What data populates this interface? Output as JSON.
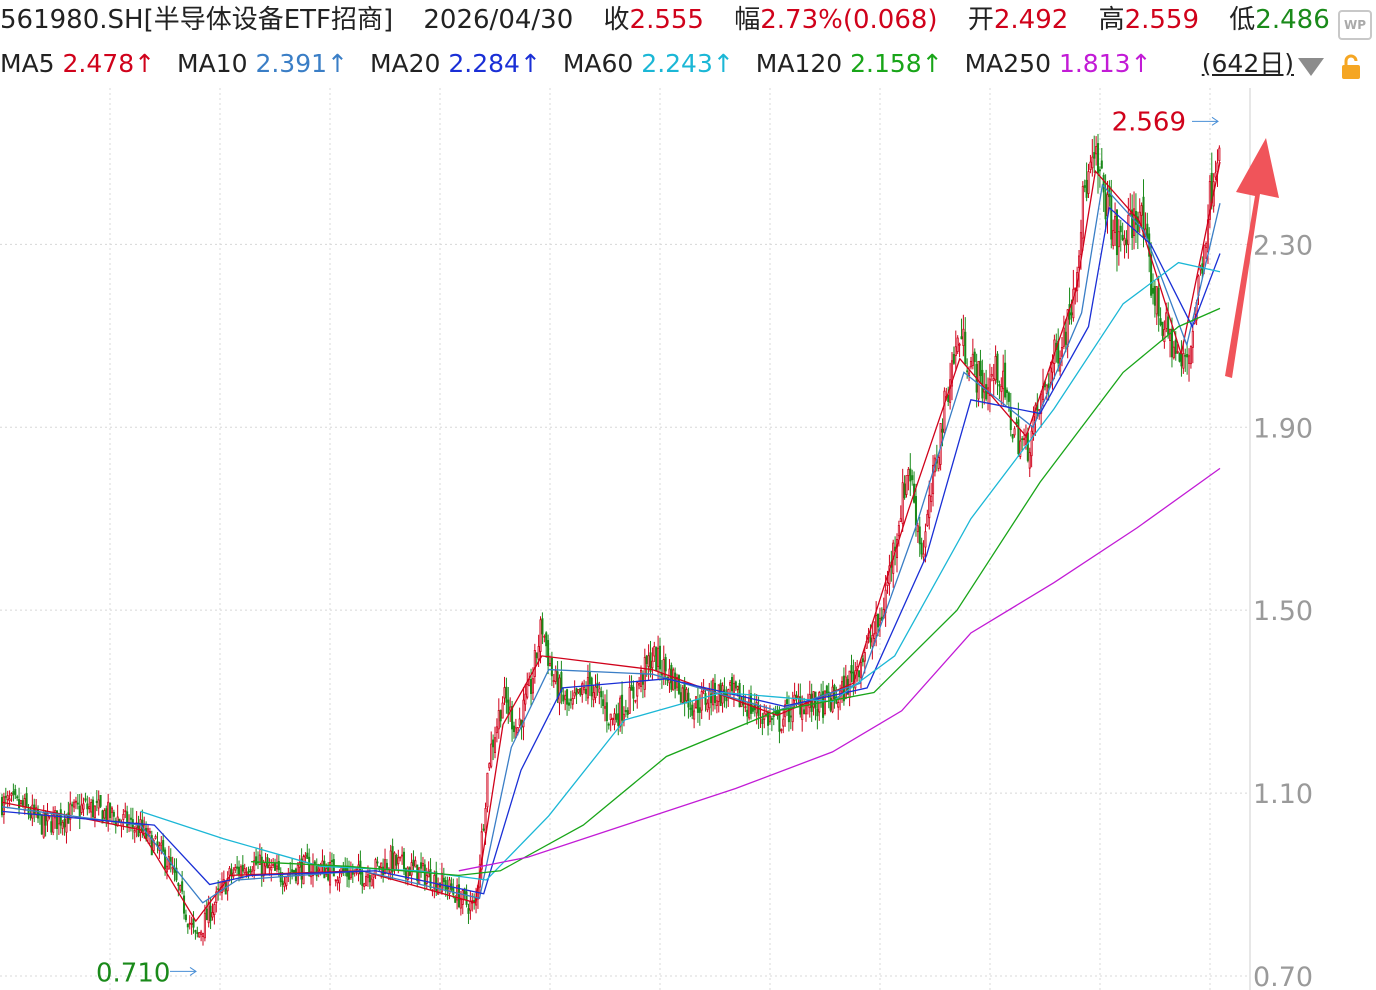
{
  "header": {
    "symbol": "561980.SH[半导体设备ETF招商]",
    "date": "2026/04/30",
    "close_label": "收",
    "close_value": "2.555",
    "change_label": "幅",
    "change_value": "2.73%(0.068)",
    "open_label": "开",
    "open_value": "2.492",
    "high_label": "高",
    "high_value": "2.559",
    "low_label": "低",
    "low_value": "2.486"
  },
  "ma": [
    {
      "label": "MA5",
      "value": "2.478↑",
      "color": "#d0021b"
    },
    {
      "label": "MA10",
      "value": "2.391↑",
      "color": "#3a7ec6"
    },
    {
      "label": "MA20",
      "value": "2.284↑",
      "color": "#1a2fd6"
    },
    {
      "label": "MA60",
      "value": "2.243↑",
      "color": "#1bb7d6"
    },
    {
      "label": "MA120",
      "value": "2.158↑",
      "color": "#19a519"
    },
    {
      "label": "MA250",
      "value": "1.813↑",
      "color": "#c21bd6"
    }
  ],
  "period": "(642日)",
  "badge": "WP",
  "colors": {
    "up": "#d0021b",
    "down": "#1a8a1a",
    "arrow": "#f0545a",
    "grid": "#d8d8d8"
  },
  "chart_data": {
    "type": "candlestick",
    "bars": 642,
    "y_ticks": [
      "2.30",
      "1.90",
      "1.50",
      "1.10",
      "0.70"
    ],
    "ylim": [
      0.7,
      2.62
    ],
    "max_label": "2.569",
    "min_label": "0.710",
    "close_path": [
      [
        0,
        1.08
      ],
      [
        15,
        1.07
      ],
      [
        30,
        1.03
      ],
      [
        45,
        1.05
      ],
      [
        60,
        1.07
      ],
      [
        80,
        1.05
      ],
      [
        100,
        1.02
      ],
      [
        120,
        0.95
      ],
      [
        140,
        0.78
      ],
      [
        150,
        0.84
      ],
      [
        165,
        0.92
      ],
      [
        180,
        0.95
      ],
      [
        200,
        0.92
      ],
      [
        220,
        0.94
      ],
      [
        240,
        0.93
      ],
      [
        260,
        0.92
      ],
      [
        280,
        0.95
      ],
      [
        300,
        0.93
      ],
      [
        320,
        0.9
      ],
      [
        335,
        0.86
      ],
      [
        342,
        0.85
      ],
      [
        345,
        0.95
      ],
      [
        352,
        1.18
      ],
      [
        362,
        1.31
      ],
      [
        372,
        1.24
      ],
      [
        382,
        1.33
      ],
      [
        390,
        1.47
      ],
      [
        398,
        1.35
      ],
      [
        410,
        1.28
      ],
      [
        425,
        1.34
      ],
      [
        440,
        1.26
      ],
      [
        455,
        1.31
      ],
      [
        470,
        1.4
      ],
      [
        485,
        1.35
      ],
      [
        500,
        1.29
      ],
      [
        515,
        1.32
      ],
      [
        530,
        1.31
      ],
      [
        545,
        1.28
      ],
      [
        560,
        1.25
      ],
      [
        575,
        1.3
      ],
      [
        590,
        1.29
      ],
      [
        605,
        1.31
      ],
      [
        615,
        1.36
      ],
      [
        625,
        1.42
      ],
      [
        635,
        1.48
      ],
      [
        645,
        1.65
      ],
      [
        655,
        1.82
      ],
      [
        665,
        1.62
      ],
      [
        675,
        1.83
      ],
      [
        685,
        2.02
      ],
      [
        692,
        2.1
      ],
      [
        700,
        2.04
      ],
      [
        710,
        1.98
      ],
      [
        720,
        2.03
      ],
      [
        730,
        1.9
      ],
      [
        740,
        1.85
      ],
      [
        750,
        1.95
      ],
      [
        760,
        2.05
      ],
      [
        770,
        2.13
      ],
      [
        776,
        2.25
      ],
      [
        782,
        2.42
      ],
      [
        790,
        2.48
      ],
      [
        798,
        2.39
      ],
      [
        806,
        2.3
      ],
      [
        814,
        2.33
      ],
      [
        822,
        2.38
      ],
      [
        830,
        2.22
      ],
      [
        838,
        2.13
      ],
      [
        846,
        2.08
      ],
      [
        852,
        2.03
      ],
      [
        858,
        2.07
      ],
      [
        864,
        2.2
      ],
      [
        870,
        2.34
      ],
      [
        876,
        2.48
      ],
      [
        880,
        2.555
      ]
    ],
    "ma_paths": {
      "MA5": [
        [
          0,
          1.08
        ],
        [
          100,
          1.02
        ],
        [
          140,
          0.82
        ],
        [
          165,
          0.92
        ],
        [
          260,
          0.93
        ],
        [
          342,
          0.86
        ],
        [
          362,
          1.25
        ],
        [
          390,
          1.4
        ],
        [
          470,
          1.37
        ],
        [
          560,
          1.27
        ],
        [
          615,
          1.34
        ],
        [
          655,
          1.72
        ],
        [
          692,
          2.05
        ],
        [
          740,
          1.88
        ],
        [
          776,
          2.2
        ],
        [
          790,
          2.46
        ],
        [
          822,
          2.35
        ],
        [
          852,
          2.06
        ],
        [
          880,
          2.48
        ]
      ],
      "MA10": [
        [
          0,
          1.07
        ],
        [
          100,
          1.03
        ],
        [
          145,
          0.86
        ],
        [
          170,
          0.91
        ],
        [
          260,
          0.93
        ],
        [
          345,
          0.87
        ],
        [
          368,
          1.2
        ],
        [
          395,
          1.37
        ],
        [
          470,
          1.36
        ],
        [
          560,
          1.28
        ],
        [
          620,
          1.34
        ],
        [
          660,
          1.68
        ],
        [
          695,
          2.02
        ],
        [
          745,
          1.9
        ],
        [
          780,
          2.15
        ],
        [
          795,
          2.43
        ],
        [
          825,
          2.33
        ],
        [
          856,
          2.08
        ],
        [
          880,
          2.39
        ]
      ],
      "MA20": [
        [
          0,
          1.06
        ],
        [
          110,
          1.03
        ],
        [
          150,
          0.9
        ],
        [
          180,
          0.92
        ],
        [
          270,
          0.93
        ],
        [
          348,
          0.88
        ],
        [
          375,
          1.15
        ],
        [
          405,
          1.33
        ],
        [
          480,
          1.35
        ],
        [
          565,
          1.29
        ],
        [
          625,
          1.33
        ],
        [
          668,
          1.62
        ],
        [
          700,
          1.96
        ],
        [
          750,
          1.93
        ],
        [
          785,
          2.12
        ],
        [
          800,
          2.38
        ],
        [
          830,
          2.3
        ],
        [
          860,
          2.12
        ],
        [
          880,
          2.28
        ]
      ],
      "MA60": [
        [
          100,
          1.06
        ],
        [
          160,
          1.0
        ],
        [
          230,
          0.94
        ],
        [
          300,
          0.93
        ],
        [
          350,
          0.91
        ],
        [
          395,
          1.05
        ],
        [
          450,
          1.26
        ],
        [
          520,
          1.32
        ],
        [
          600,
          1.3
        ],
        [
          645,
          1.4
        ],
        [
          700,
          1.7
        ],
        [
          760,
          1.94
        ],
        [
          810,
          2.17
        ],
        [
          850,
          2.26
        ],
        [
          880,
          2.24
        ]
      ],
      "MA120": [
        [
          180,
          0.95
        ],
        [
          250,
          0.94
        ],
        [
          330,
          0.92
        ],
        [
          360,
          0.93
        ],
        [
          420,
          1.03
        ],
        [
          480,
          1.18
        ],
        [
          560,
          1.28
        ],
        [
          630,
          1.32
        ],
        [
          690,
          1.5
        ],
        [
          750,
          1.78
        ],
        [
          810,
          2.02
        ],
        [
          850,
          2.12
        ],
        [
          880,
          2.16
        ]
      ],
      "MA250": [
        [
          330,
          0.93
        ],
        [
          380,
          0.96
        ],
        [
          450,
          1.03
        ],
        [
          530,
          1.11
        ],
        [
          600,
          1.19
        ],
        [
          650,
          1.28
        ],
        [
          700,
          1.45
        ],
        [
          760,
          1.56
        ],
        [
          820,
          1.68
        ],
        [
          880,
          1.81
        ]
      ]
    }
  }
}
